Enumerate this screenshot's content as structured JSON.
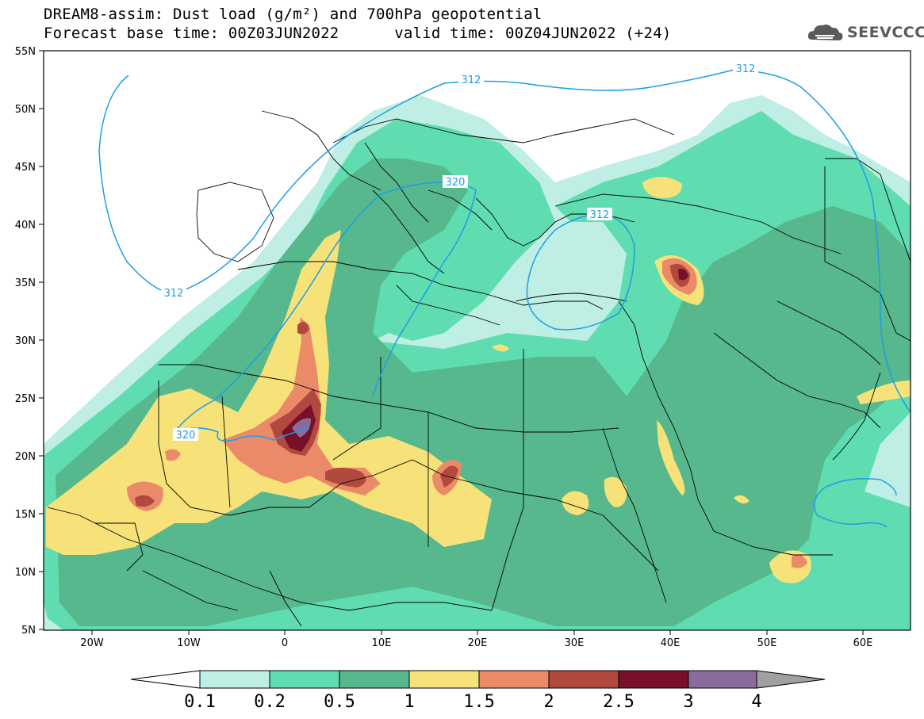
{
  "title": {
    "line1": "DREAM8-assim: Dust load (g/m²) and 700hPa geopotential",
    "line2_left": "Forecast base time: 00Z03JUN2022",
    "line2_right": "valid time: 00Z04JUN2022 (+24)"
  },
  "logo": {
    "text": "SEEVCCC",
    "icon": "cloud-logo-icon"
  },
  "axes": {
    "lat_labels": [
      "55N",
      "50N",
      "45N",
      "40N",
      "35N",
      "30N",
      "25N",
      "20N",
      "15N",
      "10N",
      "5N"
    ],
    "lon_labels": [
      "20W",
      "10W",
      "0",
      "10E",
      "20E",
      "30E",
      "40E",
      "50E",
      "60E"
    ]
  },
  "contour_labels": [
    "312",
    "320",
    "312",
    "320",
    "312",
    "312"
  ],
  "colorbar": {
    "ticks": [
      "0.1",
      "0.2",
      "0.5",
      "1",
      "1.5",
      "2",
      "2.5",
      "3",
      "4"
    ],
    "colors": [
      "#ffffff",
      "#bfeee4",
      "#5fdcb0",
      "#56b88c",
      "#f6e279",
      "#eb8a69",
      "#b2493e",
      "#78102a",
      "#8a6c9c",
      "#a0a0a0"
    ]
  },
  "colors": {
    "contour": "#1d9ee6",
    "borders": "#000000"
  }
}
